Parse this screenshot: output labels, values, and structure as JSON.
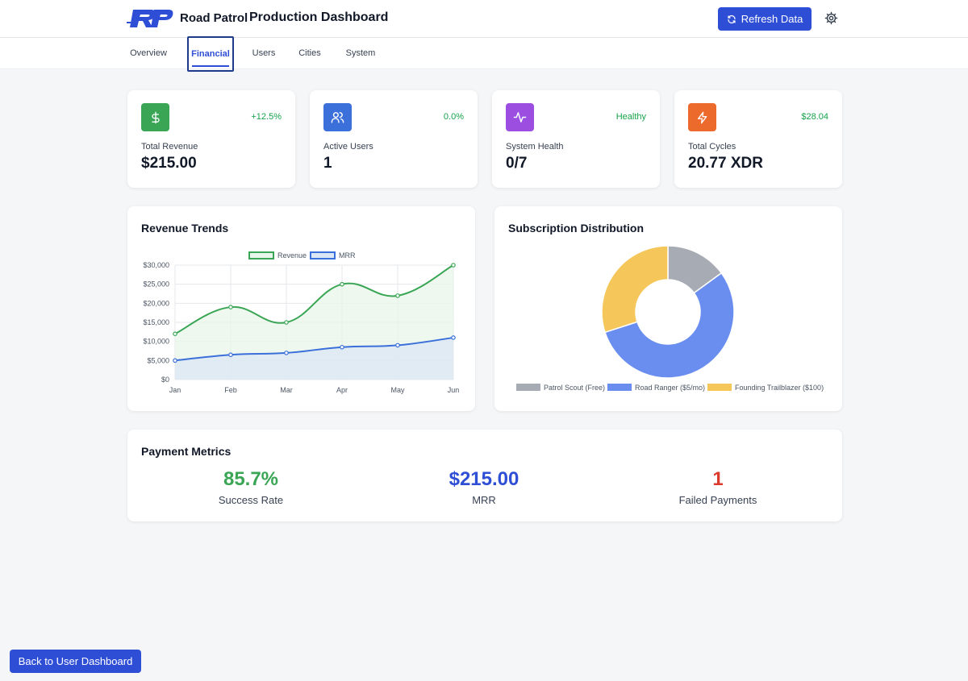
{
  "header": {
    "brand": "Road Patrol",
    "title": "Production Dashboard",
    "refresh_label": "Refresh Data"
  },
  "tabs": [
    {
      "label": "Overview",
      "active": false
    },
    {
      "label": "Financial",
      "active": true
    },
    {
      "label": "Users",
      "active": false
    },
    {
      "label": "Cities",
      "active": false
    },
    {
      "label": "System",
      "active": false
    }
  ],
  "stats": [
    {
      "label": "Total Revenue",
      "value": "$215.00",
      "change": "+12.5%",
      "icon": "dollar-icon",
      "color": "#3aa655"
    },
    {
      "label": "Active Users",
      "value": "1",
      "change": "0.0%",
      "icon": "users-icon",
      "color": "#3b6fd9"
    },
    {
      "label": "System Health",
      "value": "0/7",
      "change": "Healthy",
      "icon": "activity-icon",
      "color": "#9b4ee0"
    },
    {
      "label": "Total Cycles",
      "value": "20.77 XDR",
      "change": "$28.04",
      "icon": "lightning-icon",
      "color": "#ec6a2b"
    }
  ],
  "revenue_card": {
    "title": "Revenue Trends"
  },
  "subscription_card": {
    "title": "Subscription Distribution"
  },
  "chart_data": [
    {
      "type": "line",
      "categories": [
        "Jan",
        "Feb",
        "Mar",
        "Apr",
        "May",
        "Jun"
      ],
      "series": [
        {
          "name": "Revenue",
          "values": [
            12000,
            19000,
            15000,
            25000,
            22000,
            30000
          ],
          "color": "#3aa655",
          "fill": "#e8f5e9"
        },
        {
          "name": "MRR",
          "values": [
            5000,
            6500,
            7000,
            8500,
            9000,
            11000
          ],
          "color": "#3b6fd9",
          "fill": "#dbe7f5"
        }
      ],
      "yticks": [
        "$0",
        "$5,000",
        "$10,000",
        "$15,000",
        "$20,000",
        "$25,000",
        "$30,000"
      ],
      "ylim": [
        0,
        30000
      ],
      "legend": "top",
      "grid": true
    },
    {
      "type": "pie",
      "donut": true,
      "labels": [
        "Patrol Scout (Free)",
        "Road Ranger ($5/mo)",
        "Founding Trailblazer ($100)"
      ],
      "values": [
        15,
        55,
        30
      ],
      "colors": [
        "#a7acb4",
        "#6a8ef0",
        "#f5c659"
      ],
      "legend": "bottom"
    }
  ],
  "payment_metrics": {
    "title": "Payment Metrics",
    "items": [
      {
        "value": "85.7%",
        "label": "Success Rate",
        "color": "#3aa655"
      },
      {
        "value": "$215.00",
        "label": "MRR",
        "color": "#2f4ed6"
      },
      {
        "value": "1",
        "label": "Failed Payments",
        "color": "#dc3a2e"
      }
    ]
  },
  "footer": {
    "back_label": "Back to User Dashboard"
  }
}
